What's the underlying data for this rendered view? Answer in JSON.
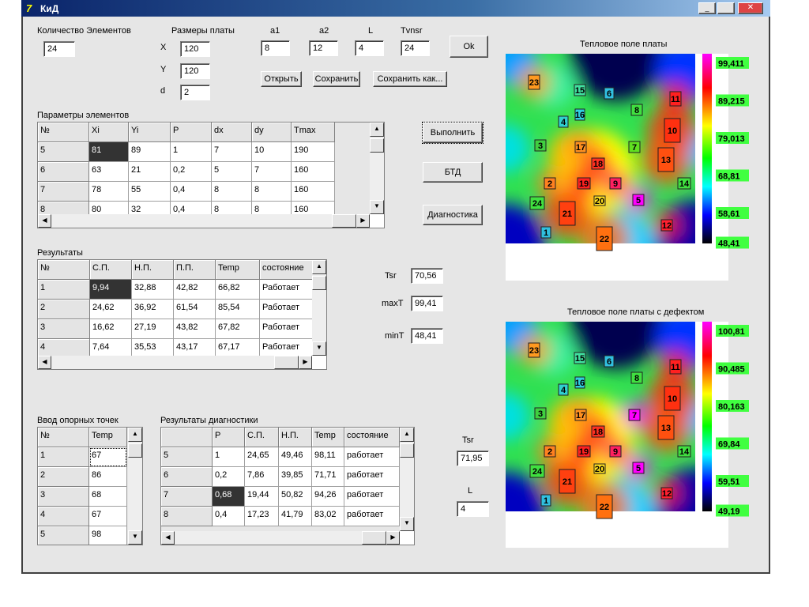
{
  "window": {
    "title": "КиД"
  },
  "elements_count": {
    "label": "Количество Элементов",
    "value": "24"
  },
  "board_size": {
    "label": "Размеры платы",
    "x_label": "X",
    "x": "120",
    "y_label": "Y",
    "y": "120",
    "d_label": "d",
    "d": "2"
  },
  "params": [
    {
      "label": "a1",
      "value": "8"
    },
    {
      "label": "a2",
      "value": "12"
    },
    {
      "label": "L",
      "value": "4"
    },
    {
      "label": "Tvnsr",
      "value": "24"
    }
  ],
  "buttons": {
    "ok": "Ok",
    "open": "Открыть",
    "save": "Сохранить",
    "save_as": "Сохранить как...",
    "run": "Выполнить",
    "btd": "БТД",
    "diagnostics": "Диагностика"
  },
  "element_params": {
    "title": "Параметры элементов",
    "columns": [
      "№",
      "Xi",
      "Yi",
      "P",
      "dx",
      "dy",
      "Tmax"
    ],
    "rows": [
      [
        "5",
        "81",
        "89",
        "1",
        "7",
        "10",
        "190"
      ],
      [
        "6",
        "63",
        "21",
        "0,2",
        "5",
        "7",
        "160"
      ],
      [
        "7",
        "78",
        "55",
        "0,4",
        "8",
        "8",
        "160"
      ],
      [
        "8",
        "80",
        "32",
        "0,4",
        "8",
        "8",
        "160"
      ]
    ]
  },
  "results": {
    "title": "Результаты",
    "columns": [
      "№",
      "С.П.",
      "Н.П.",
      "П.П.",
      "Temp",
      "состояние"
    ],
    "rows": [
      [
        "1",
        "9,94",
        "32,88",
        "42,82",
        "66,82",
        "Работает"
      ],
      [
        "2",
        "24,62",
        "36,92",
        "61,54",
        "85,54",
        "Работает"
      ],
      [
        "3",
        "16,62",
        "27,19",
        "43,82",
        "67,82",
        "Работает"
      ],
      [
        "4",
        "7,64",
        "35,53",
        "43,17",
        "67,17",
        "Работает"
      ]
    ]
  },
  "stats": [
    {
      "label": "Tsr",
      "value": "70,56"
    },
    {
      "label": "maxT",
      "value": "99,41"
    },
    {
      "label": "minT",
      "value": "48,41"
    }
  ],
  "reference_points": {
    "title": "Ввод опорных точек",
    "columns": [
      "№",
      "Temp"
    ],
    "rows": [
      [
        "1",
        "67"
      ],
      [
        "2",
        "86"
      ],
      [
        "3",
        "68"
      ],
      [
        "4",
        "67"
      ],
      [
        "5",
        "98"
      ]
    ]
  },
  "diagnostic_results": {
    "title": "Результаты диагностики",
    "columns": [
      null,
      "P",
      "С.П.",
      "Н.П.",
      "Temp",
      "состояние"
    ],
    "rows": [
      [
        "5",
        "1",
        "24,65",
        "49,46",
        "98,11",
        "работает"
      ],
      [
        "6",
        "0,2",
        "7,86",
        "39,85",
        "71,71",
        "работает"
      ],
      [
        "7",
        "0,68",
        "19,44",
        "50,82",
        "94,26",
        "работает"
      ],
      [
        "8",
        "0,4",
        "17,23",
        "41,79",
        "83,02",
        "работает"
      ]
    ]
  },
  "defect_stats": [
    {
      "label": "Tsr",
      "value": "71,95"
    },
    {
      "label": "L",
      "value": "4"
    }
  ],
  "heat_maps": [
    {
      "title": "Тепловое поле платы",
      "scale_labels": [
        "99,411",
        "89,215",
        "79,013",
        "68,81",
        "58,61",
        "48,41"
      ],
      "components": [
        "23",
        "15",
        "6",
        "11",
        "16",
        "8",
        "4",
        "10",
        "3",
        "17",
        "7",
        "13",
        "18",
        "2",
        "19",
        "9",
        "14",
        "20",
        "5",
        "24",
        "21",
        "12",
        "1",
        "22"
      ]
    },
    {
      "title": "Тепловое поле платы с дефектом",
      "scale_labels": [
        "100,81",
        "90,485",
        "80,163",
        "69,84",
        "59,51",
        "49,19"
      ],
      "components": [
        "23",
        "15",
        "6",
        "11",
        "16",
        "8",
        "4",
        "10",
        "3",
        "17",
        "7",
        "13",
        "18",
        "2",
        "19",
        "9",
        "14",
        "20",
        "5",
        "24",
        "21",
        "12",
        "1",
        "22"
      ]
    }
  ]
}
